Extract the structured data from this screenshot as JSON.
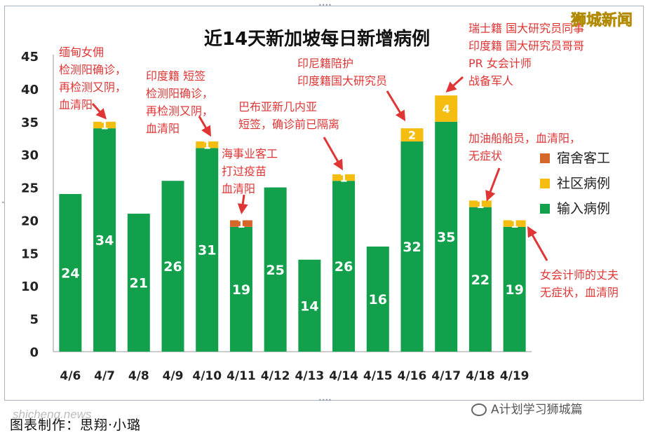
{
  "brand": "狮城新闻",
  "watermark": "shicheng.news",
  "footer": {
    "credit": "图表制作：思翔·小璐",
    "wechat": "A计划学习狮城篇"
  },
  "colors": {
    "imported": "#12a04c",
    "community": "#f5bd0f",
    "dorm": "#d5672a",
    "annotation": "#e03535",
    "brand": "#f3c800",
    "title": "#111111",
    "bar_label": "#ffffff"
  },
  "chart_data": {
    "type": "bar",
    "stacked": true,
    "title": "近14天新加坡每日新增病例",
    "categories": [
      "4/6",
      "4/7",
      "4/8",
      "4/9",
      "4/10",
      "4/11",
      "4/12",
      "4/13",
      "4/14",
      "4/15",
      "4/16",
      "4/17",
      "4/18",
      "4/19"
    ],
    "series": [
      {
        "name": "输入病例",
        "values": [
          24,
          34,
          21,
          26,
          31,
          19,
          25,
          14,
          26,
          16,
          32,
          35,
          22,
          19
        ]
      },
      {
        "name": "社区病例",
        "values": [
          0,
          1,
          0,
          0,
          1,
          0,
          0,
          0,
          1,
          0,
          2,
          4,
          1,
          1
        ]
      },
      {
        "name": "宿舍客工",
        "values": [
          0,
          0,
          0,
          0,
          0,
          1,
          0,
          0,
          0,
          0,
          0,
          0,
          0,
          0
        ]
      }
    ],
    "ylim": [
      0,
      45
    ],
    "yticks": [
      0,
      5,
      10,
      15,
      20,
      25,
      30,
      35,
      40,
      45
    ],
    "legend_position": "right",
    "grid": false,
    "annotations": [
      {
        "category": "4/7",
        "lines": [
          "缅甸女佣",
          "检测阳确诊，",
          "再检测又阴，",
          "血清阳"
        ]
      },
      {
        "category": "4/10",
        "lines": [
          "印度籍 短签",
          "检测阳确诊，",
          "再检测又阴，",
          "血清阳"
        ]
      },
      {
        "category": "4/11",
        "lines": [
          "海事业客工",
          "打过疫苗",
          "血清阳"
        ]
      },
      {
        "category": "4/14",
        "lines": [
          "巴布亚新几内亚",
          "短签，确诊前已隔离"
        ]
      },
      {
        "category": "4/16",
        "lines": [
          "印尼籍陪护",
          "印度籍国大研究员"
        ]
      },
      {
        "category": "4/17",
        "lines": [
          "瑞士籍 国大研究员同事",
          "印度籍 国大研究员哥哥",
          "PR 女会计师",
          "战备军人"
        ]
      },
      {
        "category": "4/18",
        "lines": [
          "加油船船员，血清阳，",
          "无症状"
        ]
      },
      {
        "category": "4/19",
        "lines": [
          "女会计师的丈夫",
          "无症状，血清阴"
        ]
      }
    ]
  }
}
